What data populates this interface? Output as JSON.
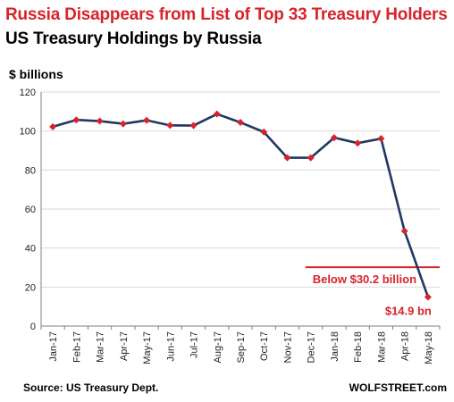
{
  "title": "Russia Disappears from List of Top 33 Treasury Holders",
  "subtitle": "US Treasury Holdings by Russia",
  "source": "Source: US Treasury Dept.",
  "brand": "WOLFSTREET.com",
  "colors": {
    "title": "#d8232a",
    "line": "#1f3864",
    "marker": "#d8232a",
    "threshold": "#d8232a",
    "annotation": "#d8232a"
  },
  "chart_data": {
    "type": "line",
    "ylabel": "$ billions",
    "ylim": [
      0,
      120
    ],
    "yticks": [
      0,
      20,
      40,
      60,
      80,
      100,
      120
    ],
    "grid": "horizontal",
    "categories": [
      "Jan-17",
      "Feb-17",
      "Mar-17",
      "Apr-17",
      "May-17",
      "Jun-17",
      "Jul-17",
      "Aug-17",
      "Sep-17",
      "Oct-17",
      "Nov-17",
      "Dec-17",
      "Jan-18",
      "Feb-18",
      "Mar-18",
      "Apr-18",
      "May-18"
    ],
    "series": [
      {
        "values": [
          102.2,
          105.7,
          105.1,
          103.7,
          105.5,
          102.9,
          102.8,
          108.7,
          104.4,
          99.5,
          86.3,
          86.3,
          96.6,
          93.8,
          96.1,
          48.7,
          14.9
        ]
      }
    ],
    "threshold": {
      "value": 30.2,
      "label": "Below $30.2 billion",
      "start_category": "Dec-17"
    },
    "end_label": "$14.9 bn"
  }
}
